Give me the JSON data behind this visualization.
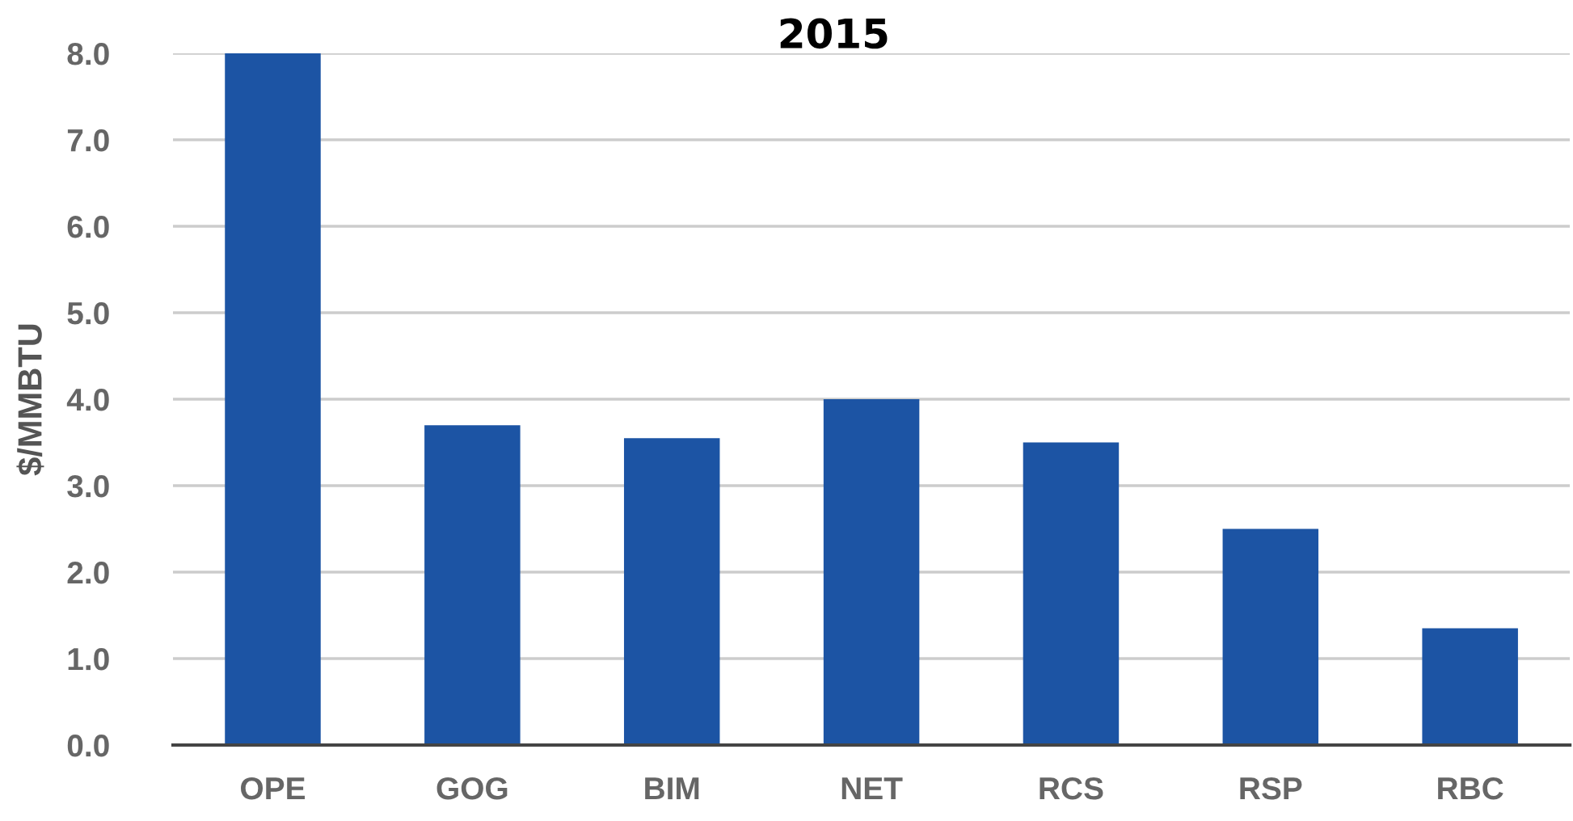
{
  "chart_data": {
    "type": "bar",
    "title": "2015",
    "ylabel": "$/MMBTU",
    "categories": [
      "OPE",
      "GOG",
      "BIM",
      "NET",
      "RCS",
      "RSP",
      "RBC"
    ],
    "values": [
      8.0,
      3.7,
      3.55,
      4.0,
      3.5,
      2.5,
      1.35
    ],
    "color": "#1c54a4",
    "ylim": [
      0,
      8
    ],
    "yticks": [
      {
        "value": 0,
        "label": "0.0"
      },
      {
        "value": 1,
        "label": "1.0"
      },
      {
        "value": 2,
        "label": "2.0"
      },
      {
        "value": 3,
        "label": "3.0"
      },
      {
        "value": 4,
        "label": "4.0"
      },
      {
        "value": 5,
        "label": "5.0"
      },
      {
        "value": 6,
        "label": "6.0"
      },
      {
        "value": 7,
        "label": "7.0"
      },
      {
        "value": 8,
        "label": "8.0"
      }
    ],
    "grid": "y",
    "legend": false
  }
}
